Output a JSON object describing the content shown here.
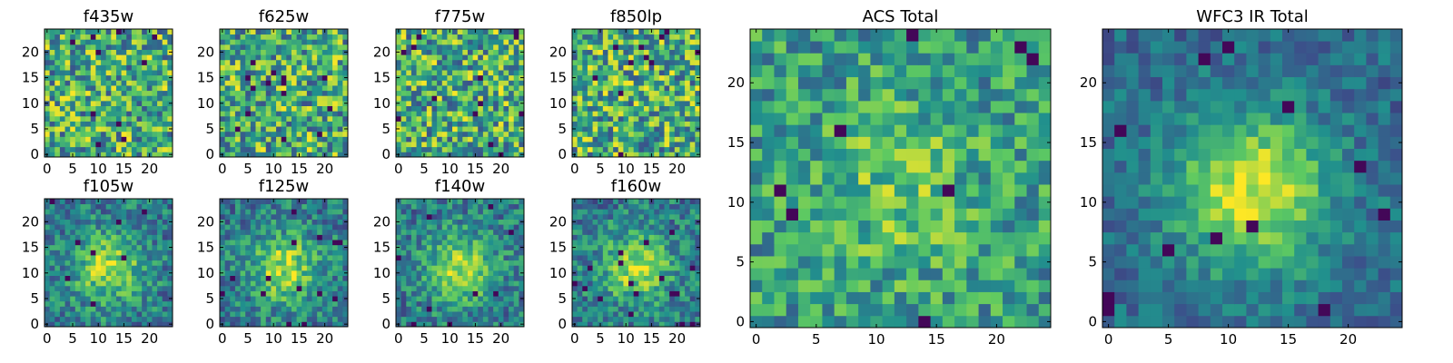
{
  "figure": {
    "colormap": "viridis",
    "colors": [
      "#440154",
      "#3b528b",
      "#21908d",
      "#5dc962",
      "#fde725"
    ]
  },
  "chart_data": [
    {
      "type": "heatmap",
      "title": "f435w",
      "rows": 25,
      "cols": 25,
      "ylim": [
        -0.5,
        24.5
      ],
      "xlim": [
        -0.5,
        24.5
      ],
      "xticks": [
        "0",
        "5",
        "10",
        "15",
        "20"
      ],
      "yticks": [
        "0",
        "5",
        "10",
        "15",
        "20"
      ],
      "pattern": "noise",
      "seed": 11
    },
    {
      "type": "heatmap",
      "title": "f625w",
      "rows": 25,
      "cols": 25,
      "ylim": [
        -0.5,
        24.5
      ],
      "xlim": [
        -0.5,
        24.5
      ],
      "xticks": [
        "0",
        "5",
        "10",
        "15",
        "20"
      ],
      "yticks": [
        "0",
        "5",
        "10",
        "15",
        "20"
      ],
      "pattern": "noise",
      "seed": 23
    },
    {
      "type": "heatmap",
      "title": "f775w",
      "rows": 25,
      "cols": 25,
      "ylim": [
        -0.5,
        24.5
      ],
      "xlim": [
        -0.5,
        24.5
      ],
      "xticks": [
        "0",
        "5",
        "10",
        "15",
        "20"
      ],
      "yticks": [
        "0",
        "5",
        "10",
        "15",
        "20"
      ],
      "pattern": "noise",
      "seed": 37
    },
    {
      "type": "heatmap",
      "title": "f850lp",
      "rows": 25,
      "cols": 25,
      "ylim": [
        -0.5,
        24.5
      ],
      "xlim": [
        -0.5,
        24.5
      ],
      "xticks": [
        "0",
        "5",
        "10",
        "15",
        "20"
      ],
      "yticks": [
        "0",
        "5",
        "10",
        "15",
        "20"
      ],
      "pattern": "noise",
      "seed": 41
    },
    {
      "type": "heatmap",
      "title": "f105w",
      "rows": 25,
      "cols": 25,
      "ylim": [
        -0.5,
        24.5
      ],
      "xlim": [
        -0.5,
        24.5
      ],
      "xticks": [
        "0",
        "5",
        "10",
        "15",
        "20"
      ],
      "yticks": [
        "0",
        "5",
        "10",
        "15",
        "20"
      ],
      "pattern": "blob",
      "seed": 53
    },
    {
      "type": "heatmap",
      "title": "f125w",
      "rows": 25,
      "cols": 25,
      "ylim": [
        -0.5,
        24.5
      ],
      "xlim": [
        -0.5,
        24.5
      ],
      "xticks": [
        "0",
        "5",
        "10",
        "15",
        "20"
      ],
      "yticks": [
        "0",
        "5",
        "10",
        "15",
        "20"
      ],
      "pattern": "blob",
      "seed": 67
    },
    {
      "type": "heatmap",
      "title": "f140w",
      "rows": 25,
      "cols": 25,
      "ylim": [
        -0.5,
        24.5
      ],
      "xlim": [
        -0.5,
        24.5
      ],
      "xticks": [
        "0",
        "5",
        "10",
        "15",
        "20"
      ],
      "yticks": [
        "0",
        "5",
        "10",
        "15",
        "20"
      ],
      "pattern": "blob",
      "seed": 79
    },
    {
      "type": "heatmap",
      "title": "f160w",
      "rows": 25,
      "cols": 25,
      "ylim": [
        -0.5,
        24.5
      ],
      "xlim": [
        -0.5,
        24.5
      ],
      "xticks": [
        "0",
        "5",
        "10",
        "15",
        "20"
      ],
      "yticks": [
        "0",
        "5",
        "10",
        "15",
        "20"
      ],
      "pattern": "blob",
      "seed": 83
    },
    {
      "type": "heatmap",
      "title": "ACS Total",
      "rows": 25,
      "cols": 25,
      "ylim": [
        -0.5,
        24.5
      ],
      "xlim": [
        -0.5,
        24.5
      ],
      "xticks": [
        "0",
        "5",
        "10",
        "15",
        "20"
      ],
      "yticks": [
        "0",
        "5",
        "10",
        "15",
        "20"
      ],
      "pattern": "noise-soft",
      "seed": 97
    },
    {
      "type": "heatmap",
      "title": "WFC3 IR Total",
      "rows": 25,
      "cols": 25,
      "ylim": [
        -0.5,
        24.5
      ],
      "xlim": [
        -0.5,
        24.5
      ],
      "xticks": [
        "0",
        "5",
        "10",
        "15",
        "20"
      ],
      "yticks": [
        "0",
        "5",
        "10",
        "15",
        "20"
      ],
      "pattern": "blob-strong",
      "seed": 101
    }
  ]
}
